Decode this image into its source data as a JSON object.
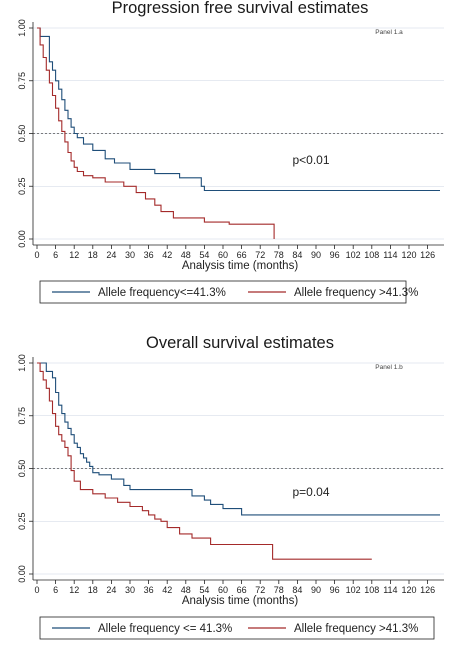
{
  "colors": {
    "low": "#1f4e79",
    "high": "#a42a2a",
    "grid": "#cdd6e3",
    "ref": "#555555"
  },
  "chart_data": [
    {
      "type": "line",
      "title": "Progression free survival estimates",
      "panel_label": "Panel 1.a",
      "annotation": "p<0.01",
      "xlabel": "Analysis time (months)",
      "ylabel": "",
      "xlim": [
        0,
        130
      ],
      "ylim": [
        0,
        1
      ],
      "xticks": [
        "0",
        "6",
        "12",
        "18",
        "24",
        "30",
        "36",
        "42",
        "48",
        "54",
        "60",
        "66",
        "72",
        "78",
        "84",
        "90",
        "96",
        "102",
        "108",
        "114",
        "120",
        "126"
      ],
      "yticks": [
        "0.00",
        "0.25",
        "0.50",
        "0.75",
        "1.00"
      ],
      "reference_line_y": 0.5,
      "series": [
        {
          "name": "Allele frequency<=41.3%",
          "color": "#1f4e79",
          "x": [
            0,
            1,
            2,
            4,
            5,
            6,
            7,
            8,
            9,
            10,
            11,
            12,
            13,
            15,
            18,
            22,
            25,
            30,
            38,
            46,
            53,
            54,
            130
          ],
          "y": [
            1.0,
            0.96,
            0.96,
            0.84,
            0.8,
            0.75,
            0.71,
            0.66,
            0.61,
            0.57,
            0.53,
            0.5,
            0.48,
            0.45,
            0.42,
            0.38,
            0.36,
            0.33,
            0.31,
            0.29,
            0.25,
            0.23,
            0.23
          ]
        },
        {
          "name": "Allele frequency >41.3%",
          "color": "#a42a2a",
          "x": [
            0,
            1,
            2,
            3,
            4,
            5,
            6,
            7,
            8,
            9,
            10,
            11,
            12,
            13,
            15,
            18,
            22,
            28,
            32,
            35,
            38,
            40,
            44,
            54,
            62,
            70,
            76,
            76.5
          ],
          "y": [
            1.0,
            0.92,
            0.86,
            0.8,
            0.74,
            0.68,
            0.62,
            0.56,
            0.51,
            0.46,
            0.41,
            0.37,
            0.34,
            0.32,
            0.3,
            0.29,
            0.27,
            0.25,
            0.22,
            0.19,
            0.16,
            0.13,
            0.1,
            0.08,
            0.07,
            0.07,
            0.07,
            0.0
          ]
        }
      ]
    },
    {
      "type": "line",
      "title": "Overall survival estimates",
      "panel_label": "Panel 1.b",
      "annotation": "p=0.04",
      "xlabel": "Analysis time (months)",
      "ylabel": "",
      "xlim": [
        0,
        130
      ],
      "ylim": [
        0,
        1
      ],
      "xticks": [
        "0",
        "6",
        "12",
        "18",
        "24",
        "30",
        "36",
        "42",
        "48",
        "54",
        "60",
        "66",
        "72",
        "78",
        "84",
        "90",
        "96",
        "102",
        "108",
        "114",
        "120",
        "126"
      ],
      "yticks": [
        "0.00",
        "0.25",
        "0.50",
        "0.75",
        "1.00"
      ],
      "reference_line_y": 0.5,
      "series": [
        {
          "name": "Allele frequency <= 41.3%",
          "color": "#1f4e79",
          "x": [
            0,
            2,
            3,
            5,
            6,
            7,
            8,
            9,
            10,
            11,
            12,
            13,
            14,
            15,
            16,
            17,
            18,
            20,
            24,
            28,
            30,
            50,
            54,
            56,
            60,
            66,
            130
          ],
          "y": [
            1.0,
            1.0,
            0.96,
            0.93,
            0.86,
            0.8,
            0.76,
            0.72,
            0.69,
            0.66,
            0.62,
            0.6,
            0.57,
            0.55,
            0.53,
            0.51,
            0.48,
            0.47,
            0.45,
            0.42,
            0.4,
            0.37,
            0.35,
            0.33,
            0.31,
            0.28,
            0.28
          ]
        },
        {
          "name": "Allele frequency >41.3%",
          "color": "#a42a2a",
          "x": [
            0,
            1,
            2,
            3,
            4,
            5,
            6,
            7,
            8,
            9,
            10,
            11,
            12,
            14,
            18,
            22,
            26,
            30,
            34,
            36,
            38,
            40,
            42,
            46,
            50,
            56,
            62,
            66,
            76,
            108
          ],
          "y": [
            1.0,
            0.96,
            0.92,
            0.88,
            0.82,
            0.76,
            0.7,
            0.66,
            0.63,
            0.6,
            0.56,
            0.49,
            0.44,
            0.4,
            0.38,
            0.36,
            0.34,
            0.32,
            0.3,
            0.28,
            0.26,
            0.25,
            0.22,
            0.19,
            0.17,
            0.14,
            0.14,
            0.14,
            0.07,
            0.07
          ]
        }
      ]
    }
  ]
}
